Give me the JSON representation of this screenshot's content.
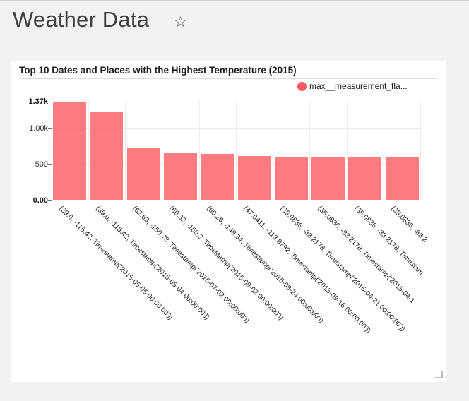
{
  "page": {
    "title": "Weather Data",
    "favorite_icon": "star-outline"
  },
  "card": {
    "title": "Top 10 Dates and Places with the Highest Temperature (2015)"
  },
  "chart_data": {
    "type": "bar",
    "title": "Top 10 Dates and Places with the Highest Temperature (2015)",
    "legend": [
      "max__measurement_fla..."
    ],
    "legend_position": "top-right",
    "series_color": "#ff5a5f",
    "bar_fill": "rgba(255,90,95,0.8)",
    "grid": true,
    "ylim": [
      0,
      1370
    ],
    "y_ticks": [
      {
        "label": "0.00",
        "value": 0,
        "bold": true
      },
      {
        "label": "500",
        "value": 500,
        "bold": false
      },
      {
        "label": "1.00k",
        "value": 1000,
        "bold": false
      },
      {
        "label": "1.37k",
        "value": 1370,
        "bold": true
      }
    ],
    "categories": [
      "(39.0, -115.42, Timestamp('2015-05-05 00:00:00'))",
      "(39.0, -115.42, Timestamp('2015-05-04 00:00:00'))",
      "(62.63, -150.78, Timestamp('2015-07-02 00:00:00'))",
      "(60.32, -160.2, Timestamp('2015-09-02 00:00:00'))",
      "(60.26, -149.34, Timestamp('2015-08-24 00:00:00'))",
      "(47.0411, -113.9792, Timestamp('2015-09-16 00:00:00'))",
      "(35.0836, -83.2178, Timestamp('2015-04-21 00:00:00'))",
      "(35.0836, -83.2178, Timestamp('2015-04-1",
      "(35.0836, -83.2178, Timestam",
      "(35.0836, -83.2"
    ],
    "values": [
      1370,
      1220,
      720,
      655,
      645,
      615,
      605,
      605,
      600,
      600
    ],
    "xlabel": "",
    "ylabel": ""
  }
}
